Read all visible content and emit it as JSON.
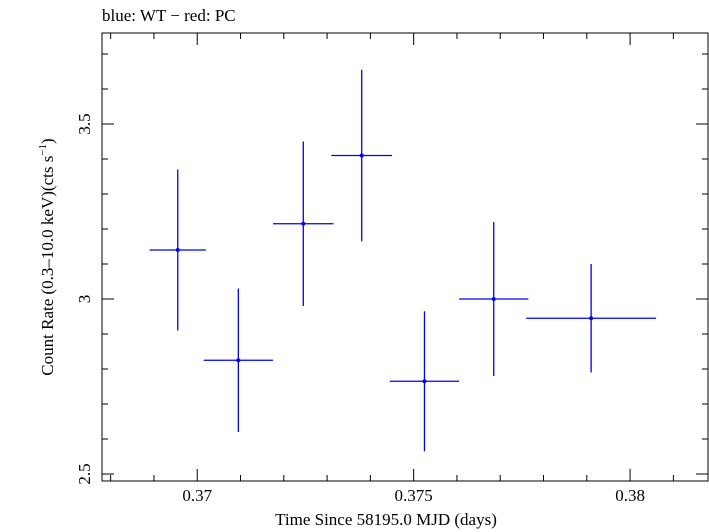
{
  "chart_data": {
    "type": "scatter",
    "title": "blue: WT − red: PC",
    "xlabel": "Time Since 58195.0 MJD (days)",
    "ylabel_main": "Count Rate (0.3–10.0 keV)(cts s",
    "ylabel_sup": "−1",
    "ylabel_close": ")",
    "xlim": [
      0.3678,
      0.3818
    ],
    "ylim": [
      2.48,
      3.76
    ],
    "xticks": [
      0.37,
      0.375,
      0.38
    ],
    "xtick_labels": [
      "0.37",
      "0.375",
      "0.38"
    ],
    "yticks": [
      2.5,
      3,
      3.5
    ],
    "ytick_labels": [
      "2.5",
      "3",
      "3.5"
    ],
    "grid": false,
    "series": [
      {
        "color": "#0000ff",
        "points": [
          {
            "x": 0.36955,
            "y": 3.14,
            "xerr": 0.00065,
            "yerr": 0.23
          },
          {
            "x": 0.37095,
            "y": 2.825,
            "xerr": 0.0008,
            "yerr": 0.205
          },
          {
            "x": 0.37245,
            "y": 3.215,
            "xerr": 0.0007,
            "yerr": 0.235
          },
          {
            "x": 0.3738,
            "y": 3.41,
            "xerr": 0.0007,
            "yerr": 0.245
          },
          {
            "x": 0.37525,
            "y": 2.765,
            "xerr": 0.0008,
            "yerr": 0.2
          },
          {
            "x": 0.37685,
            "y": 3.0,
            "xerr": 0.0008,
            "yerr": 0.22
          },
          {
            "x": 0.3791,
            "y": 2.945,
            "xerr": 0.0015,
            "yerr": 0.155
          }
        ]
      }
    ]
  }
}
